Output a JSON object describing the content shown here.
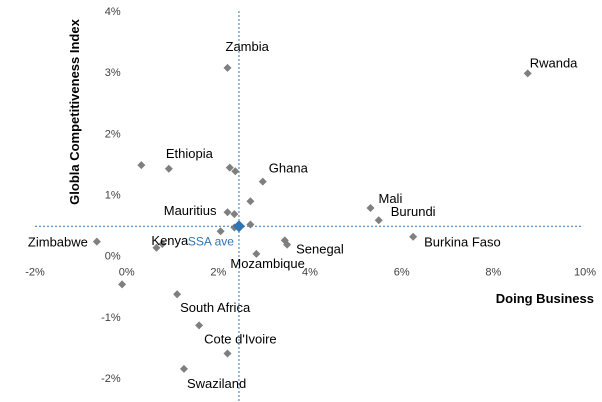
{
  "chart_data": {
    "type": "scatter",
    "title": "",
    "xlabel": "Doing Business",
    "ylabel": "Globla Competitiveness Index",
    "xlim": [
      -0.02,
      0.1
    ],
    "ylim": [
      -0.02,
      0.04
    ],
    "x_ticks": [
      {
        "value": -0.02,
        "label": "-2%"
      },
      {
        "value": 0.0,
        "label": "0%"
      },
      {
        "value": 0.02,
        "label": "2%"
      },
      {
        "value": 0.04,
        "label": "4%"
      },
      {
        "value": 0.06,
        "label": "6%"
      },
      {
        "value": 0.08,
        "label": "8%"
      },
      {
        "value": 0.1,
        "label": "10%"
      }
    ],
    "y_ticks": [
      {
        "value": 0.04,
        "label": "4%"
      },
      {
        "value": 0.03,
        "label": "3%"
      },
      {
        "value": 0.02,
        "label": "2%"
      },
      {
        "value": 0.01,
        "label": "1%"
      },
      {
        "value": 0.0,
        "label": "0%"
      },
      {
        "value": -0.01,
        "label": "-1%"
      },
      {
        "value": -0.02,
        "label": "-2%"
      }
    ],
    "marker_color": "#7f7f7f",
    "average_color": "#2e75b6",
    "average": {
      "name": "SSA ave",
      "x": 0.0245,
      "y": 0.0048
    },
    "points": [
      {
        "name": "Zambia",
        "x": 0.022,
        "y": 0.0307
      },
      {
        "name": "Rwanda",
        "x": 0.0875,
        "y": 0.0298
      },
      {
        "name": "Ethiopia",
        "x": 0.0092,
        "y": 0.0142
      },
      {
        "name": "",
        "x": 0.0032,
        "y": 0.0148
      },
      {
        "name": "",
        "x": 0.0225,
        "y": 0.0144
      },
      {
        "name": "",
        "x": 0.0237,
        "y": 0.0138
      },
      {
        "name": "Ghana",
        "x": 0.0297,
        "y": 0.0121
      },
      {
        "name": "Mali",
        "x": 0.0532,
        "y": 0.0078
      },
      {
        "name": "Burundi",
        "x": 0.055,
        "y": 0.0058
      },
      {
        "name": "",
        "x": 0.027,
        "y": 0.0089
      },
      {
        "name": "Mauritius",
        "x": 0.022,
        "y": 0.0071
      },
      {
        "name": "",
        "x": 0.0235,
        "y": 0.0068
      },
      {
        "name": "",
        "x": 0.027,
        "y": 0.0051
      },
      {
        "name": "",
        "x": 0.0235,
        "y": 0.0046
      },
      {
        "name": "",
        "x": 0.0205,
        "y": 0.004
      },
      {
        "name": "Burkina Faso",
        "x": 0.0625,
        "y": 0.0031
      },
      {
        "name": "",
        "x": 0.0345,
        "y": 0.0025
      },
      {
        "name": "Senegal",
        "x": 0.035,
        "y": 0.0018
      },
      {
        "name": "Zimbabwe",
        "x": -0.0065,
        "y": 0.0023
      },
      {
        "name": "Kenya",
        "x": 0.0078,
        "y": 0.0019
      },
      {
        "name": "",
        "x": 0.0065,
        "y": 0.0013
      },
      {
        "name": "Mozambique",
        "x": 0.0283,
        "y": 0.0003
      },
      {
        "name": "",
        "x": -0.001,
        "y": -0.0047
      },
      {
        "name": "South Africa",
        "x": 0.011,
        "y": -0.0063
      },
      {
        "name": "Cote d'Ivoire",
        "x": 0.0158,
        "y": -0.0114
      },
      {
        "name": "",
        "x": 0.022,
        "y": -0.016
      },
      {
        "name": "Swaziland",
        "x": 0.0125,
        "y": -0.0185
      }
    ]
  }
}
